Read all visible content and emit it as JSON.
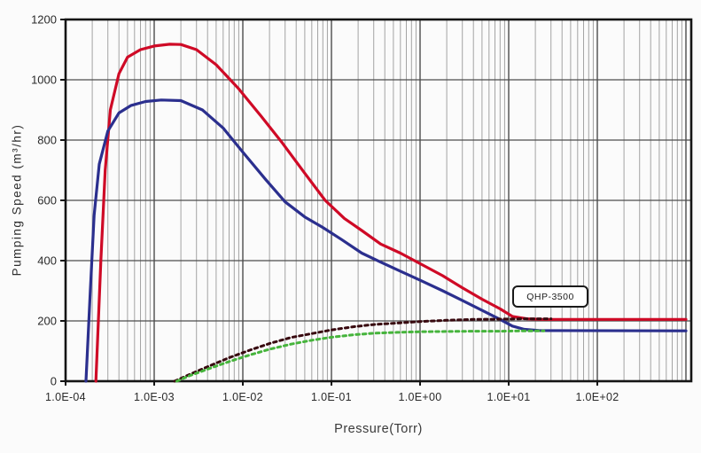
{
  "figure": {
    "background": "#fbfbfb",
    "frame_color": "#141414",
    "annotation_label": "QHP-3500"
  },
  "chart_data": {
    "type": "line",
    "title": "",
    "xlabel": "Pressure(Torr)",
    "ylabel": "Pumping Speed (m³/hr)",
    "x_scale": "log",
    "x_range": [
      0.0001,
      1000
    ],
    "ylim": [
      0,
      1200
    ],
    "y_ticks": [
      0,
      200,
      400,
      600,
      800,
      1000,
      1200
    ],
    "x_ticks": [
      {
        "value": 0.0001,
        "label": "1.0E-04"
      },
      {
        "value": 0.001,
        "label": "1.0E-03"
      },
      {
        "value": 0.01,
        "label": "1.0E-02"
      },
      {
        "value": 0.1,
        "label": "1.0E-01"
      },
      {
        "value": 1,
        "label": "1.0E+00"
      },
      {
        "value": 10,
        "label": "1.0E+01"
      },
      {
        "value": 100,
        "label": "1.0E+02"
      }
    ],
    "grid": {
      "minor_vertical_color": "#a3a3a3",
      "major_vertical_color": "#4d4d4d",
      "horizontal_color": "#4d4d4d",
      "on": true
    },
    "legend_position": "none",
    "annotations": [
      {
        "text": "QHP-3500",
        "near_x": 12,
        "near_y": 300
      }
    ],
    "series": [
      {
        "name": "red-solid-main",
        "color": "#cf0a26",
        "style": "solid",
        "width": 3.2,
        "points": [
          [
            0.00022,
            0
          ],
          [
            0.00025,
            400
          ],
          [
            0.00028,
            700
          ],
          [
            0.00032,
            900
          ],
          [
            0.0004,
            1020
          ],
          [
            0.0005,
            1075
          ],
          [
            0.0007,
            1100
          ],
          [
            0.001,
            1112
          ],
          [
            0.0015,
            1118
          ],
          [
            0.002,
            1117
          ],
          [
            0.003,
            1100
          ],
          [
            0.005,
            1050
          ],
          [
            0.009,
            970
          ],
          [
            0.016,
            880
          ],
          [
            0.028,
            790
          ],
          [
            0.05,
            690
          ],
          [
            0.085,
            600
          ],
          [
            0.14,
            540
          ],
          [
            0.22,
            500
          ],
          [
            0.36,
            455
          ],
          [
            0.6,
            425
          ],
          [
            1,
            390
          ],
          [
            1.8,
            350
          ],
          [
            3,
            310
          ],
          [
            5,
            272
          ],
          [
            8,
            240
          ],
          [
            11,
            215
          ],
          [
            16,
            207
          ],
          [
            25,
            205
          ],
          [
            1000,
            205
          ]
        ]
      },
      {
        "name": "blue-solid-main",
        "color": "#2b2f8e",
        "style": "solid",
        "width": 3.2,
        "points": [
          [
            0.00017,
            0
          ],
          [
            0.00019,
            300
          ],
          [
            0.00021,
            550
          ],
          [
            0.00024,
            720
          ],
          [
            0.0003,
            830
          ],
          [
            0.0004,
            890
          ],
          [
            0.00055,
            915
          ],
          [
            0.0008,
            928
          ],
          [
            0.0012,
            933
          ],
          [
            0.002,
            931
          ],
          [
            0.0035,
            900
          ],
          [
            0.006,
            840
          ],
          [
            0.01,
            760
          ],
          [
            0.018,
            670
          ],
          [
            0.03,
            595
          ],
          [
            0.05,
            545
          ],
          [
            0.08,
            510
          ],
          [
            0.13,
            470
          ],
          [
            0.22,
            425
          ],
          [
            0.36,
            395
          ],
          [
            0.6,
            365
          ],
          [
            1,
            335
          ],
          [
            1.8,
            300
          ],
          [
            3,
            268
          ],
          [
            5,
            235
          ],
          [
            8,
            205
          ],
          [
            11,
            183
          ],
          [
            15,
            172
          ],
          [
            22,
            168
          ],
          [
            1000,
            167
          ]
        ]
      },
      {
        "name": "dark-dashed",
        "color": "#38090f",
        "style": "dashed",
        "width": 3,
        "points": [
          [
            0.0017,
            0
          ],
          [
            0.0025,
            22
          ],
          [
            0.004,
            48
          ],
          [
            0.007,
            78
          ],
          [
            0.012,
            103
          ],
          [
            0.02,
            125
          ],
          [
            0.035,
            145
          ],
          [
            0.06,
            158
          ],
          [
            0.1,
            170
          ],
          [
            0.18,
            181
          ],
          [
            0.3,
            188
          ],
          [
            0.55,
            193
          ],
          [
            1,
            198
          ],
          [
            2,
            202
          ],
          [
            4,
            205
          ],
          [
            8,
            206
          ],
          [
            15,
            207
          ],
          [
            30,
            207
          ]
        ]
      },
      {
        "name": "green-dashed",
        "color": "#46b43c",
        "style": "dashed",
        "width": 3,
        "points": [
          [
            0.0018,
            0
          ],
          [
            0.0025,
            18
          ],
          [
            0.004,
            40
          ],
          [
            0.007,
            65
          ],
          [
            0.012,
            87
          ],
          [
            0.02,
            106
          ],
          [
            0.035,
            123
          ],
          [
            0.06,
            136
          ],
          [
            0.1,
            146
          ],
          [
            0.18,
            154
          ],
          [
            0.3,
            159
          ],
          [
            0.55,
            162
          ],
          [
            1,
            164
          ],
          [
            2,
            165
          ],
          [
            4,
            166
          ],
          [
            8,
            166
          ],
          [
            15,
            167
          ],
          [
            25,
            167
          ]
        ]
      }
    ]
  }
}
